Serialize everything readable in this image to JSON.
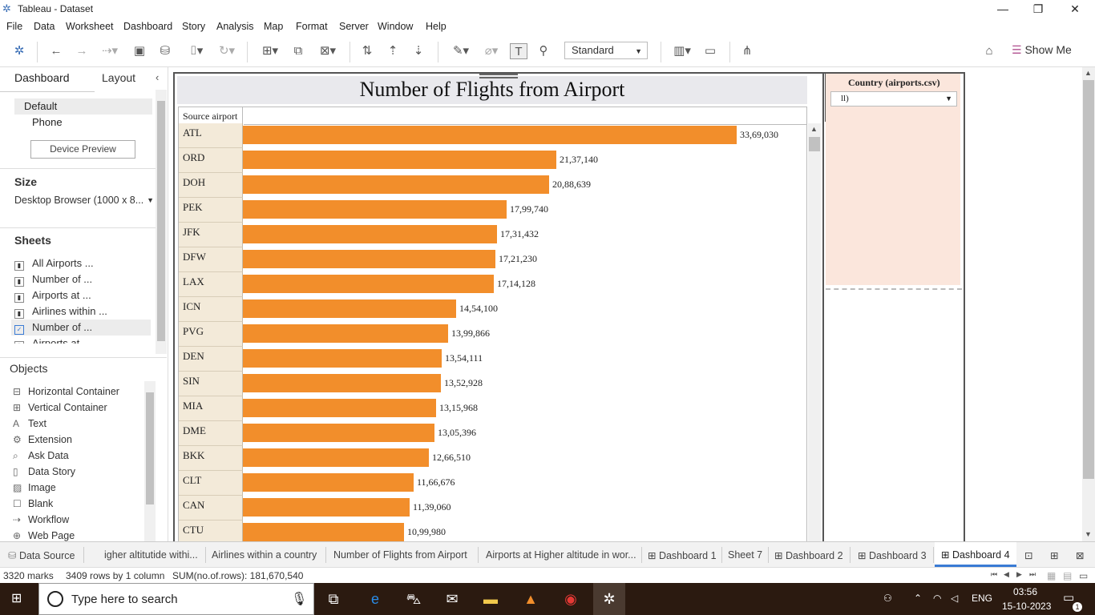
{
  "app": {
    "title": "Tableau - Dataset",
    "window_controls": [
      "minimize-icon",
      "restore-icon",
      "close-icon"
    ]
  },
  "menu": [
    "File",
    "Data",
    "Worksheet",
    "Dashboard",
    "Story",
    "Analysis",
    "Map",
    "Format",
    "Server",
    "Window",
    "Help"
  ],
  "toolbar": {
    "fit_value": "Standard",
    "show_me_label": "Show Me"
  },
  "left_pane": {
    "tabs": [
      "Dashboard",
      "Layout"
    ],
    "device_options": [
      "Default",
      "Phone"
    ],
    "device_preview_label": "Device Preview",
    "size_header": "Size",
    "size_value": "Desktop Browser (1000 x 8...",
    "sheets_header": "Sheets",
    "sheets": [
      "All Airports ...",
      "Number of ...",
      "Airports at ...",
      "Airlines within ...",
      "Number of ...",
      "Airports at ..."
    ],
    "objects_header": "Objects",
    "objects": [
      {
        "label": "Horizontal Container",
        "icon": "horizontal-container-icon"
      },
      {
        "label": "Vertical Container",
        "icon": "vertical-container-icon"
      },
      {
        "label": "Text",
        "icon": "text-icon"
      },
      {
        "label": "Extension",
        "icon": "extension-icon"
      },
      {
        "label": "Ask Data",
        "icon": "ask-data-icon"
      },
      {
        "label": "Data Story",
        "icon": "data-story-icon"
      },
      {
        "label": "Image",
        "icon": "image-icon"
      },
      {
        "label": "Blank",
        "icon": "blank-icon"
      },
      {
        "label": "Workflow",
        "icon": "workflow-icon"
      },
      {
        "label": "Web Page",
        "icon": "web-page-icon"
      }
    ]
  },
  "chart_data": {
    "type": "bar",
    "title": "Number of Flights from Airport",
    "row_header": "Source airport",
    "categories": [
      "ATL",
      "ORD",
      "DOH",
      "PEK",
      "JFK",
      "DFW",
      "LAX",
      "ICN",
      "PVG",
      "DEN",
      "SIN",
      "MIA",
      "DME",
      "BKK",
      "CLT",
      "CAN",
      "CTU"
    ],
    "values": [
      3369030,
      2137140,
      2088639,
      1799740,
      1731432,
      1721230,
      1714128,
      1454100,
      1399866,
      1354111,
      1352928,
      1315968,
      1305396,
      1266510,
      1166676,
      1139060,
      1099980
    ],
    "value_labels": [
      "33,69,030",
      "21,37,140",
      "20,88,639",
      "17,99,740",
      "17,31,432",
      "17,21,230",
      "17,14,128",
      "14,54,100",
      "13,99,866",
      "13,54,111",
      "13,52,928",
      "13,15,968",
      "13,05,396",
      "12,66,510",
      "11,66,676",
      "11,39,060",
      "10,99,980"
    ],
    "xlim": [
      0,
      3369030
    ],
    "bar_color": "#f28e2b",
    "orientation": "horizontal"
  },
  "filter": {
    "title": "Country (airports.csv)",
    "value": "ll)"
  },
  "bottom_tabs": [
    "Data Source",
    "igher altitutide withi...",
    "Airlines within a country",
    "Number of Flights from Airport",
    "Airports at Higher altitude in wor...",
    "Dashboard 1",
    "Sheet 7",
    "Dashboard 2",
    "Dashboard 3",
    "Dashboard 4"
  ],
  "status": {
    "marks": "3320 marks",
    "rows": "3409 rows by 1 column",
    "sum": "SUM(no.of.rows): 181,670,540"
  },
  "taskbar": {
    "search_placeholder": "Type here to search",
    "language": "ENG",
    "time": "03:56",
    "date": "15-10-2023",
    "notification_count": "1"
  }
}
